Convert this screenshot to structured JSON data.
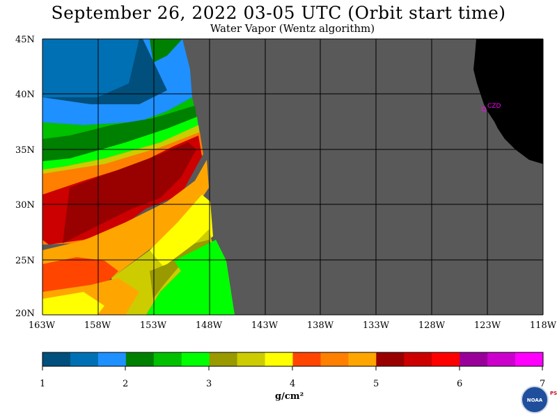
{
  "title": "September 26, 2022  03-05 UTC  (Orbit start time)",
  "subtitle": "Water Vapor (Wentz algorithm)",
  "map": {
    "lat_labels": [
      "45N",
      "40N",
      "35N",
      "30N",
      "25N",
      "20N"
    ],
    "lon_labels": [
      "163W",
      "158W",
      "153W",
      "148W",
      "143W",
      "138W",
      "133W",
      "128W",
      "123W",
      "118W"
    ],
    "lat_range": [
      20,
      45
    ],
    "lon_range": [
      -163,
      -118
    ],
    "no_data_color": "#595959",
    "land_color": "#000000",
    "station_label": "CZD",
    "station_color": "#ff00ff"
  },
  "colorbar": {
    "colors": [
      "#004f7c",
      "#0070b4",
      "#1e90ff",
      "#008000",
      "#00c000",
      "#00ff00",
      "#999900",
      "#cccc00",
      "#ffff00",
      "#ff4500",
      "#ff7f00",
      "#ffa500",
      "#990000",
      "#cc0000",
      "#ff0000",
      "#990099",
      "#cc00cc",
      "#ff00ff"
    ],
    "tick_labels": [
      "1",
      "2",
      "3",
      "4",
      "5",
      "6",
      "7"
    ],
    "units": "g/cm²"
  },
  "logo": {
    "name": "noaa-logo",
    "text": "NOAA",
    "side_text": "PSL"
  }
}
